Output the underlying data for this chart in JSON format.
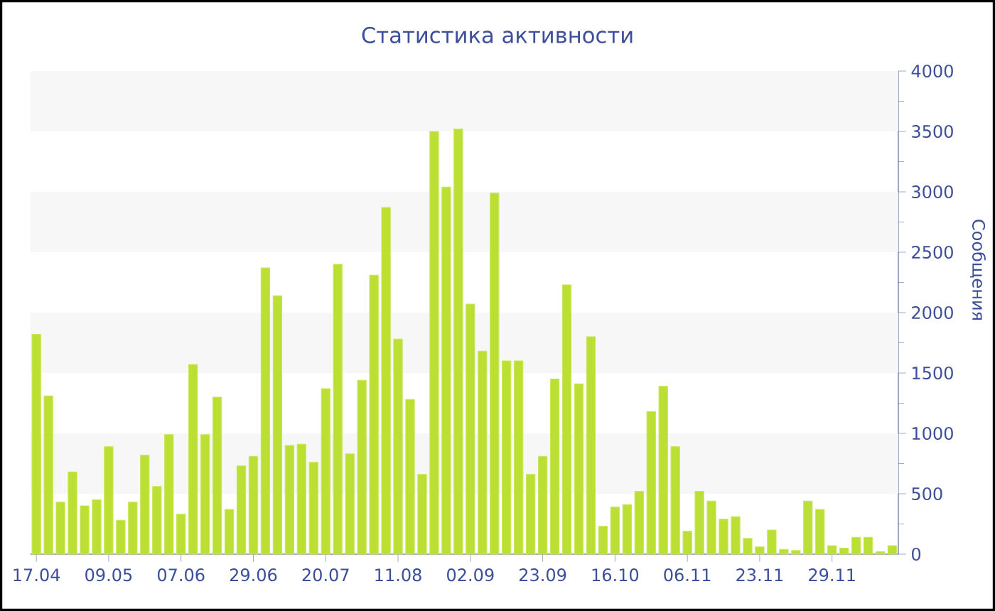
{
  "chart_data": {
    "type": "bar",
    "title": "Статистика активности",
    "ylabel": "Сообщения",
    "color": "#bbe033",
    "categories": [
      "17.04",
      null,
      null,
      null,
      null,
      null,
      "09.05",
      null,
      null,
      null,
      null,
      null,
      "07.06",
      null,
      null,
      null,
      null,
      null,
      "29.06",
      null,
      null,
      null,
      null,
      null,
      "20.07",
      null,
      null,
      null,
      null,
      null,
      "11.08",
      null,
      null,
      null,
      null,
      null,
      "02.09",
      null,
      null,
      null,
      null,
      null,
      "23.09",
      null,
      null,
      null,
      null,
      null,
      "16.10",
      null,
      null,
      null,
      null,
      null,
      "06.11",
      null,
      null,
      null,
      null,
      null,
      "23.11",
      null,
      null,
      null,
      null,
      null,
      "29.11",
      null,
      null,
      null,
      null,
      null
    ],
    "values": [
      1820,
      1310,
      430,
      680,
      400,
      450,
      890,
      280,
      430,
      820,
      560,
      990,
      330,
      1570,
      990,
      1300,
      370,
      730,
      810,
      2370,
      2140,
      900,
      910,
      760,
      1370,
      2400,
      830,
      1440,
      2310,
      2870,
      1780,
      1280,
      660,
      3500,
      3040,
      3520,
      2070,
      1680,
      2990,
      1600,
      1600,
      660,
      810,
      1450,
      2230,
      1410,
      1800,
      230,
      390,
      410,
      520,
      1180,
      1390,
      890,
      190,
      520,
      440,
      290,
      310,
      130,
      60,
      200,
      40,
      30,
      440,
      370,
      70,
      50,
      140,
      140,
      20,
      70
    ],
    "ylim": [
      0,
      4000
    ],
    "yticks": [
      0,
      500,
      1000,
      1500,
      2000,
      2500,
      3000,
      3500,
      4000
    ],
    "bands": [
      {
        "axis": "y",
        "from": 500,
        "to": 1000,
        "color": "#f7f7f7"
      },
      {
        "axis": "y",
        "from": 1500,
        "to": 2000,
        "color": "#f7f7f7"
      },
      {
        "axis": "y",
        "from": 2500,
        "to": 3000,
        "color": "#f7f7f7"
      },
      {
        "axis": "y",
        "from": 3500,
        "to": 4000,
        "color": "#f7f7f7"
      }
    ]
  }
}
